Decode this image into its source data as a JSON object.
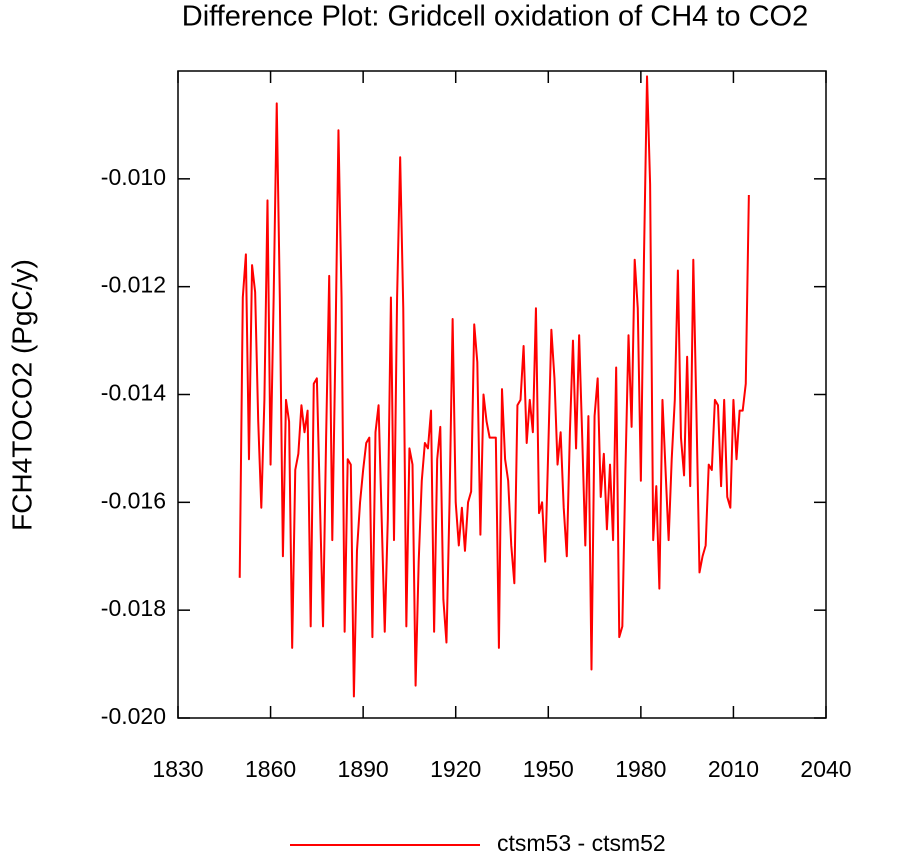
{
  "chart_data": {
    "type": "line",
    "title": "Difference Plot: Gridcell oxidation of CH4 to CO2",
    "ylabel": "FCH4TOCO2  (PgC/y)",
    "x": [
      1850,
      1851,
      1852,
      1853,
      1854,
      1855,
      1856,
      1857,
      1858,
      1859,
      1860,
      1861,
      1862,
      1863,
      1864,
      1865,
      1866,
      1867,
      1868,
      1869,
      1870,
      1871,
      1872,
      1873,
      1874,
      1875,
      1876,
      1877,
      1878,
      1879,
      1880,
      1881,
      1882,
      1883,
      1884,
      1885,
      1886,
      1887,
      1888,
      1889,
      1890,
      1891,
      1892,
      1893,
      1894,
      1895,
      1896,
      1897,
      1898,
      1899,
      1900,
      1901,
      1902,
      1903,
      1904,
      1905,
      1906,
      1907,
      1908,
      1909,
      1910,
      1911,
      1912,
      1913,
      1914,
      1915,
      1916,
      1917,
      1918,
      1919,
      1920,
      1921,
      1922,
      1923,
      1924,
      1925,
      1926,
      1927,
      1928,
      1929,
      1930,
      1931,
      1932,
      1933,
      1934,
      1935,
      1936,
      1937,
      1938,
      1939,
      1940,
      1941,
      1942,
      1943,
      1944,
      1945,
      1946,
      1947,
      1948,
      1949,
      1950,
      1951,
      1952,
      1953,
      1954,
      1955,
      1956,
      1957,
      1958,
      1959,
      1960,
      1961,
      1962,
      1963,
      1964,
      1965,
      1966,
      1967,
      1968,
      1969,
      1970,
      1971,
      1972,
      1973,
      1974,
      1975,
      1976,
      1977,
      1978,
      1979,
      1980,
      1981,
      1982,
      1983,
      1984,
      1985,
      1986,
      1987,
      1988,
      1989,
      1990,
      1991,
      1992,
      1993,
      1994,
      1995,
      1996,
      1997,
      1998,
      1999,
      2000,
      2001,
      2002,
      2003,
      2004,
      2005,
      2006,
      2007,
      2008,
      2009,
      2010,
      2011,
      2012,
      2013,
      2014,
      2015
    ],
    "series": [
      {
        "name": "ctsm53 - ctsm52",
        "color": "#ff0000",
        "values": [
          -0.0174,
          -0.0122,
          -0.0114,
          -0.0152,
          -0.0116,
          -0.0121,
          -0.0145,
          -0.0161,
          -0.0141,
          -0.0104,
          -0.0153,
          -0.0122,
          -0.0086,
          -0.0122,
          -0.017,
          -0.0141,
          -0.0145,
          -0.0187,
          -0.0154,
          -0.0151,
          -0.0142,
          -0.0147,
          -0.0143,
          -0.0183,
          -0.0138,
          -0.0137,
          -0.016,
          -0.0183,
          -0.0148,
          -0.0118,
          -0.0167,
          -0.0132,
          -0.0091,
          -0.0122,
          -0.0184,
          -0.0152,
          -0.0153,
          -0.0196,
          -0.0169,
          -0.016,
          -0.0154,
          -0.0149,
          -0.0148,
          -0.0185,
          -0.0147,
          -0.0142,
          -0.0163,
          -0.0184,
          -0.0163,
          -0.0122,
          -0.0167,
          -0.0122,
          -0.0096,
          -0.0124,
          -0.0183,
          -0.015,
          -0.0153,
          -0.0194,
          -0.0171,
          -0.0156,
          -0.0149,
          -0.015,
          -0.0143,
          -0.0184,
          -0.0152,
          -0.0146,
          -0.0178,
          -0.0186,
          -0.016,
          -0.0126,
          -0.016,
          -0.0168,
          -0.0161,
          -0.0169,
          -0.016,
          -0.0158,
          -0.0127,
          -0.0134,
          -0.0166,
          -0.014,
          -0.0145,
          -0.0148,
          -0.0148,
          -0.0148,
          -0.0187,
          -0.0139,
          -0.0152,
          -0.0156,
          -0.0168,
          -0.0175,
          -0.0142,
          -0.0141,
          -0.0131,
          -0.0149,
          -0.0141,
          -0.0147,
          -0.0124,
          -0.0162,
          -0.016,
          -0.0171,
          -0.015,
          -0.0128,
          -0.0137,
          -0.0153,
          -0.0147,
          -0.0161,
          -0.017,
          -0.0147,
          -0.013,
          -0.015,
          -0.0129,
          -0.0148,
          -0.0168,
          -0.0144,
          -0.0191,
          -0.0144,
          -0.0137,
          -0.0159,
          -0.0151,
          -0.0165,
          -0.0153,
          -0.0167,
          -0.0135,
          -0.0185,
          -0.0183,
          -0.0154,
          -0.0129,
          -0.0146,
          -0.0115,
          -0.0124,
          -0.0156,
          -0.0115,
          -0.0081,
          -0.0101,
          -0.0167,
          -0.0157,
          -0.0176,
          -0.0141,
          -0.0154,
          -0.0167,
          -0.0152,
          -0.0141,
          -0.0117,
          -0.0148,
          -0.0155,
          -0.0133,
          -0.0157,
          -0.0115,
          -0.0143,
          -0.0173,
          -0.017,
          -0.0168,
          -0.0153,
          -0.0154,
          -0.0141,
          -0.0142,
          -0.0157,
          -0.0141,
          -0.0159,
          -0.0161,
          -0.0141,
          -0.0152,
          -0.0143,
          -0.0143,
          -0.0138,
          -0.0103
        ]
      }
    ],
    "xlim": [
      1830,
      2040
    ],
    "xticks": [
      1830,
      1860,
      1890,
      1920,
      1950,
      1980,
      2010,
      2040
    ],
    "ylim": [
      -0.02,
      -0.008
    ],
    "yticks": [
      {
        "value": -0.02,
        "label": "-0.020"
      },
      -0.018,
      -0.016,
      -0.014,
      -0.012,
      {
        "value": -0.01,
        "label": "-0.010"
      }
    ]
  }
}
